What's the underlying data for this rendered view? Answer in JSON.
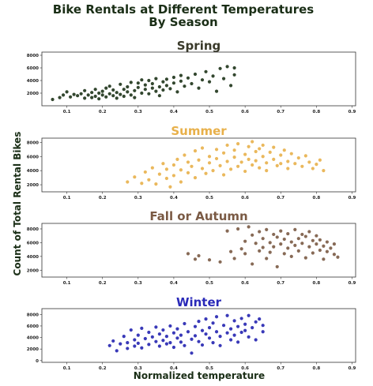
{
  "figure": {
    "title_line1": "Bike Rentals at Different Temperatures",
    "title_line2": "By Season",
    "title_color": "#1a2e16",
    "xlabel": "Normalized temperature",
    "ylabel": "Count of Total Rental Bikes",
    "xticks": [
      "0.1",
      "0.2",
      "0.3",
      "0.4",
      "0.5",
      "0.6",
      "0.7",
      "0.8",
      "0.9"
    ]
  },
  "chart_data": [
    {
      "type": "scatter",
      "title": "Spring",
      "color": "#1d3318",
      "title_color": "#3a3a2a",
      "xlim": [
        0.03,
        0.91
      ],
      "ylim": [
        0,
        8500
      ],
      "yticks": [
        2000,
        4000,
        6000,
        8000
      ],
      "xticks": [
        0.1,
        0.2,
        0.3,
        0.4,
        0.5,
        0.6,
        0.7,
        0.8,
        0.9
      ],
      "points": [
        [
          0.06,
          1000
        ],
        [
          0.08,
          1300
        ],
        [
          0.09,
          1700
        ],
        [
          0.1,
          2200
        ],
        [
          0.11,
          1400
        ],
        [
          0.12,
          1800
        ],
        [
          0.13,
          1600
        ],
        [
          0.14,
          1900
        ],
        [
          0.15,
          1200
        ],
        [
          0.15,
          2400
        ],
        [
          0.16,
          1700
        ],
        [
          0.17,
          2100
        ],
        [
          0.17,
          1300
        ],
        [
          0.18,
          2600
        ],
        [
          0.18,
          1500
        ],
        [
          0.19,
          2000
        ],
        [
          0.19,
          1100
        ],
        [
          0.2,
          2300
        ],
        [
          0.2,
          1700
        ],
        [
          0.21,
          2800
        ],
        [
          0.21,
          1400
        ],
        [
          0.22,
          1900
        ],
        [
          0.22,
          3100
        ],
        [
          0.23,
          1600
        ],
        [
          0.23,
          2500
        ],
        [
          0.24,
          1200
        ],
        [
          0.24,
          2100
        ],
        [
          0.25,
          3400
        ],
        [
          0.25,
          1800
        ],
        [
          0.26,
          2600
        ],
        [
          0.26,
          1500
        ],
        [
          0.27,
          3000
        ],
        [
          0.27,
          2200
        ],
        [
          0.28,
          1700
        ],
        [
          0.28,
          3700
        ],
        [
          0.29,
          2400
        ],
        [
          0.29,
          1300
        ],
        [
          0.3,
          2900
        ],
        [
          0.3,
          3600
        ],
        [
          0.31,
          2000
        ],
        [
          0.31,
          4100
        ],
        [
          0.32,
          2600
        ],
        [
          0.32,
          3300
        ],
        [
          0.33,
          1900
        ],
        [
          0.33,
          4000
        ],
        [
          0.34,
          2800
        ],
        [
          0.34,
          3500
        ],
        [
          0.35,
          2300
        ],
        [
          0.35,
          4300
        ],
        [
          0.36,
          3000
        ],
        [
          0.36,
          1600
        ],
        [
          0.37,
          3800
        ],
        [
          0.37,
          2500
        ],
        [
          0.38,
          4200
        ],
        [
          0.38,
          3200
        ],
        [
          0.39,
          2700
        ],
        [
          0.4,
          4500
        ],
        [
          0.4,
          3600
        ],
        [
          0.41,
          2200
        ],
        [
          0.42,
          3900
        ],
        [
          0.42,
          4800
        ],
        [
          0.43,
          3100
        ],
        [
          0.44,
          4400
        ],
        [
          0.45,
          3500
        ],
        [
          0.46,
          5000
        ],
        [
          0.47,
          2800
        ],
        [
          0.48,
          4100
        ],
        [
          0.49,
          5400
        ],
        [
          0.5,
          3800
        ],
        [
          0.51,
          4700
        ],
        [
          0.52,
          2300
        ],
        [
          0.53,
          5900
        ],
        [
          0.54,
          4300
        ],
        [
          0.55,
          6200
        ],
        [
          0.56,
          3200
        ],
        [
          0.57,
          6000
        ],
        [
          0.57,
          4900
        ]
      ]
    },
    {
      "type": "scatter",
      "title": "Summer",
      "color": "#e8b04a",
      "title_color": "#e8b04a",
      "xlim": [
        0.03,
        0.91
      ],
      "ylim": [
        1000,
        8600
      ],
      "yticks": [
        2000,
        4000,
        6000,
        8000
      ],
      "xticks": [
        0.1,
        0.2,
        0.3,
        0.4,
        0.5,
        0.6,
        0.7,
        0.8,
        0.9
      ],
      "points": [
        [
          0.27,
          2400
        ],
        [
          0.29,
          3100
        ],
        [
          0.31,
          2200
        ],
        [
          0.32,
          3800
        ],
        [
          0.33,
          2700
        ],
        [
          0.34,
          4400
        ],
        [
          0.35,
          2100
        ],
        [
          0.36,
          3500
        ],
        [
          0.37,
          5000
        ],
        [
          0.38,
          2900
        ],
        [
          0.38,
          4200
        ],
        [
          0.39,
          1700
        ],
        [
          0.4,
          4800
        ],
        [
          0.4,
          3300
        ],
        [
          0.41,
          5600
        ],
        [
          0.42,
          2400
        ],
        [
          0.42,
          4100
        ],
        [
          0.43,
          6200
        ],
        [
          0.44,
          3700
        ],
        [
          0.44,
          5200
        ],
        [
          0.45,
          4600
        ],
        [
          0.46,
          6800
        ],
        [
          0.46,
          3000
        ],
        [
          0.47,
          5500
        ],
        [
          0.48,
          4300
        ],
        [
          0.48,
          7200
        ],
        [
          0.49,
          3600
        ],
        [
          0.5,
          6000
        ],
        [
          0.5,
          5100
        ],
        [
          0.51,
          4000
        ],
        [
          0.52,
          7000
        ],
        [
          0.52,
          5700
        ],
        [
          0.53,
          4700
        ],
        [
          0.54,
          6500
        ],
        [
          0.54,
          3400
        ],
        [
          0.55,
          7600
        ],
        [
          0.55,
          5300
        ],
        [
          0.56,
          4200
        ],
        [
          0.57,
          6900
        ],
        [
          0.57,
          5900
        ],
        [
          0.58,
          4600
        ],
        [
          0.58,
          7800
        ],
        [
          0.59,
          5200
        ],
        [
          0.6,
          6300
        ],
        [
          0.6,
          3900
        ],
        [
          0.61,
          7400
        ],
        [
          0.61,
          5600
        ],
        [
          0.62,
          8100
        ],
        [
          0.62,
          4800
        ],
        [
          0.63,
          6700
        ],
        [
          0.63,
          5400
        ],
        [
          0.64,
          7100
        ],
        [
          0.64,
          4400
        ],
        [
          0.65,
          6000
        ],
        [
          0.65,
          7600
        ],
        [
          0.66,
          5100
        ],
        [
          0.66,
          4000
        ],
        [
          0.67,
          6600
        ],
        [
          0.68,
          5600
        ],
        [
          0.68,
          7300
        ],
        [
          0.69,
          4700
        ],
        [
          0.7,
          6200
        ],
        [
          0.7,
          5000
        ],
        [
          0.71,
          6900
        ],
        [
          0.72,
          5300
        ],
        [
          0.72,
          4300
        ],
        [
          0.73,
          6400
        ],
        [
          0.74,
          5000
        ],
        [
          0.75,
          5800
        ],
        [
          0.76,
          4600
        ],
        [
          0.77,
          6100
        ],
        [
          0.78,
          5200
        ],
        [
          0.79,
          4300
        ],
        [
          0.8,
          4900
        ],
        [
          0.81,
          5500
        ],
        [
          0.82,
          4000
        ]
      ]
    },
    {
      "type": "scatter",
      "title": "Fall or Autumn",
      "color": "#7a5a44",
      "title_color": "#7a5a44",
      "xlim": [
        0.03,
        0.91
      ],
      "ylim": [
        1000,
        8800
      ],
      "yticks": [
        2000,
        4000,
        6000,
        8000
      ],
      "xticks": [
        0.1,
        0.2,
        0.3,
        0.4,
        0.5,
        0.6,
        0.7,
        0.8,
        0.9
      ],
      "points": [
        [
          0.44,
          4400
        ],
        [
          0.46,
          3600
        ],
        [
          0.47,
          4100
        ],
        [
          0.5,
          3500
        ],
        [
          0.53,
          3200
        ],
        [
          0.55,
          7700
        ],
        [
          0.56,
          4700
        ],
        [
          0.57,
          3700
        ],
        [
          0.58,
          8000
        ],
        [
          0.59,
          5100
        ],
        [
          0.6,
          6200
        ],
        [
          0.6,
          4400
        ],
        [
          0.61,
          8300
        ],
        [
          0.62,
          7100
        ],
        [
          0.62,
          2900
        ],
        [
          0.63,
          5900
        ],
        [
          0.64,
          4800
        ],
        [
          0.64,
          7600
        ],
        [
          0.65,
          6600
        ],
        [
          0.65,
          5300
        ],
        [
          0.66,
          3700
        ],
        [
          0.66,
          7900
        ],
        [
          0.67,
          6000
        ],
        [
          0.67,
          4600
        ],
        [
          0.68,
          7200
        ],
        [
          0.68,
          5400
        ],
        [
          0.69,
          6800
        ],
        [
          0.69,
          2500
        ],
        [
          0.7,
          7700
        ],
        [
          0.7,
          5800
        ],
        [
          0.71,
          4400
        ],
        [
          0.71,
          6500
        ],
        [
          0.72,
          7300
        ],
        [
          0.72,
          5200
        ],
        [
          0.73,
          6100
        ],
        [
          0.73,
          4000
        ],
        [
          0.74,
          7900
        ],
        [
          0.74,
          5600
        ],
        [
          0.75,
          6600
        ],
        [
          0.75,
          4800
        ],
        [
          0.76,
          7200
        ],
        [
          0.76,
          5900
        ],
        [
          0.77,
          3800
        ],
        [
          0.77,
          6900
        ],
        [
          0.78,
          5400
        ],
        [
          0.78,
          7600
        ],
        [
          0.79,
          4500
        ],
        [
          0.79,
          6300
        ],
        [
          0.8,
          5800
        ],
        [
          0.8,
          7000
        ],
        [
          0.81,
          4900
        ],
        [
          0.81,
          6400
        ],
        [
          0.82,
          5500
        ],
        [
          0.82,
          3600
        ],
        [
          0.83,
          6100
        ],
        [
          0.83,
          4700
        ],
        [
          0.84,
          5200
        ],
        [
          0.85,
          4300
        ],
        [
          0.85,
          5800
        ],
        [
          0.86,
          3900
        ]
      ]
    },
    {
      "type": "scatter",
      "title": "Winter",
      "color": "#2424b0",
      "title_color": "#2a2ab8",
      "xlim": [
        0.03,
        0.91
      ],
      "ylim": [
        -300,
        9000
      ],
      "yticks": [
        0,
        2000,
        4000,
        6000,
        8000
      ],
      "xticks": [
        0.1,
        0.2,
        0.3,
        0.4,
        0.5,
        0.6,
        0.7,
        0.8,
        0.9
      ],
      "points": [
        [
          0.22,
          2600
        ],
        [
          0.23,
          3400
        ],
        [
          0.24,
          1700
        ],
        [
          0.25,
          2900
        ],
        [
          0.26,
          4200
        ],
        [
          0.27,
          3100
        ],
        [
          0.27,
          2100
        ],
        [
          0.28,
          5300
        ],
        [
          0.29,
          3600
        ],
        [
          0.29,
          2500
        ],
        [
          0.3,
          4400
        ],
        [
          0.3,
          3000
        ],
        [
          0.31,
          5600
        ],
        [
          0.31,
          2200
        ],
        [
          0.32,
          3800
        ],
        [
          0.33,
          4900
        ],
        [
          0.33,
          2800
        ],
        [
          0.34,
          4100
        ],
        [
          0.35,
          3300
        ],
        [
          0.35,
          5800
        ],
        [
          0.36,
          2500
        ],
        [
          0.36,
          4600
        ],
        [
          0.37,
          3500
        ],
        [
          0.37,
          5300
        ],
        [
          0.38,
          2900
        ],
        [
          0.38,
          4200
        ],
        [
          0.39,
          6000
        ],
        [
          0.39,
          3100
        ],
        [
          0.4,
          4800
        ],
        [
          0.4,
          2300
        ],
        [
          0.41,
          3900
        ],
        [
          0.41,
          5500
        ],
        [
          0.42,
          3200
        ],
        [
          0.42,
          4400
        ],
        [
          0.43,
          6400
        ],
        [
          0.43,
          2600
        ],
        [
          0.44,
          5000
        ],
        [
          0.45,
          3700
        ],
        [
          0.45,
          1300
        ],
        [
          0.46,
          5900
        ],
        [
          0.46,
          4300
        ],
        [
          0.47,
          3300
        ],
        [
          0.47,
          6800
        ],
        [
          0.48,
          5200
        ],
        [
          0.48,
          2700
        ],
        [
          0.49,
          4600
        ],
        [
          0.49,
          7200
        ],
        [
          0.5,
          3900
        ],
        [
          0.5,
          5700
        ],
        [
          0.51,
          6500
        ],
        [
          0.51,
          3100
        ],
        [
          0.52,
          5000
        ],
        [
          0.52,
          7600
        ],
        [
          0.53,
          4200
        ],
        [
          0.53,
          2600
        ],
        [
          0.54,
          6100
        ],
        [
          0.55,
          4800
        ],
        [
          0.55,
          7800
        ],
        [
          0.56,
          3600
        ],
        [
          0.56,
          5500
        ],
        [
          0.57,
          6900
        ],
        [
          0.57,
          4400
        ],
        [
          0.58,
          5900
        ],
        [
          0.58,
          3200
        ],
        [
          0.59,
          7300
        ],
        [
          0.59,
          4900
        ],
        [
          0.6,
          6300
        ],
        [
          0.6,
          5200
        ],
        [
          0.61,
          4100
        ],
        [
          0.61,
          7800
        ],
        [
          0.62,
          5700
        ],
        [
          0.63,
          6700
        ],
        [
          0.63,
          3600
        ],
        [
          0.64,
          7200
        ],
        [
          0.65,
          5000
        ],
        [
          0.65,
          6100
        ]
      ]
    }
  ]
}
